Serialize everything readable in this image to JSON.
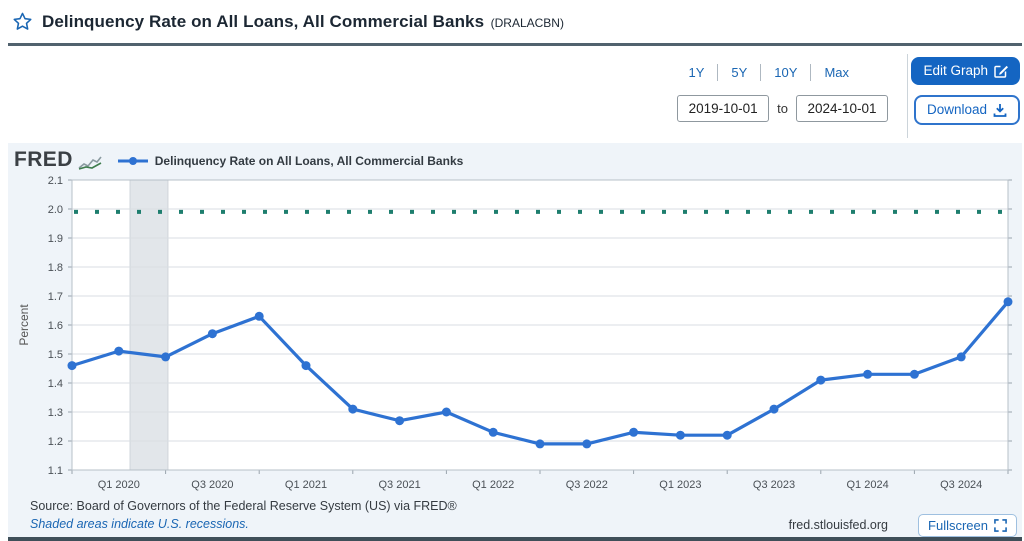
{
  "header": {
    "title": "Delinquency Rate on All Loans, All Commercial Banks",
    "series_id": "(DRALACBN)"
  },
  "controls": {
    "ranges": [
      "1Y",
      "5Y",
      "10Y",
      "Max"
    ],
    "date_from": "2019-10-01",
    "date_to": "2024-10-01",
    "to_label": "to",
    "edit_graph_label": "Edit Graph",
    "download_label": "Download"
  },
  "chart": {
    "brand": "FRED",
    "legend_label": "Delinquency Rate on All Loans, All Commercial Banks",
    "icons": [
      "fred-sparkline-icon",
      "legend-line-marker"
    ]
  },
  "chart_data": {
    "type": "line",
    "title": "Delinquency Rate on All Loans, All Commercial Banks",
    "ylabel": "Percent",
    "ylim": [
      1.1,
      2.1
    ],
    "y_ticks": [
      1.1,
      1.2,
      1.3,
      1.4,
      1.5,
      1.6,
      1.7,
      1.8,
      1.9,
      2.0,
      2.1
    ],
    "grid": true,
    "legend_position": "top-left",
    "x": [
      "2019-10-01",
      "2020-01-01",
      "2020-04-01",
      "2020-07-01",
      "2020-10-01",
      "2021-01-01",
      "2021-04-01",
      "2021-07-01",
      "2021-10-01",
      "2022-01-01",
      "2022-04-01",
      "2022-07-01",
      "2022-10-01",
      "2023-01-01",
      "2023-04-01",
      "2023-07-01",
      "2023-10-01",
      "2024-01-01",
      "2024-04-01",
      "2024-07-01",
      "2024-10-01"
    ],
    "x_tick_labels": [
      "Q1 2020",
      "Q3 2020",
      "Q1 2021",
      "Q3 2021",
      "Q1 2022",
      "Q3 2022",
      "Q1 2023",
      "Q3 2023",
      "Q1 2024",
      "Q3 2024"
    ],
    "x_tick_indices": [
      1,
      3,
      5,
      7,
      9,
      11,
      13,
      15,
      17,
      19
    ],
    "series": [
      {
        "name": "Delinquency Rate on All Loans, All Commercial Banks",
        "color": "#2e72d2",
        "marker": "circle",
        "values": [
          1.46,
          1.51,
          1.49,
          1.57,
          1.63,
          1.46,
          1.31,
          1.27,
          1.3,
          1.23,
          1.19,
          1.19,
          1.23,
          1.22,
          1.22,
          1.31,
          1.41,
          1.43,
          1.43,
          1.49,
          1.68
        ]
      }
    ],
    "reference_line": {
      "value": 1.99,
      "color": "#1e7e6e",
      "style": "dotted"
    },
    "recession_band": {
      "start_index": 1.24,
      "end_index": 2.05,
      "color": "#e2e6ea"
    },
    "colors": {
      "gridline": "#d9dee3",
      "plot_border": "#b7c0c8",
      "tick_text": "#4a5056"
    }
  },
  "footer": {
    "source": "Source: Board of Governors of the Federal Reserve System (US) via FRED®",
    "recession_note": "Shaded areas indicate U.S. recessions.",
    "site": "fred.stlouisfed.org",
    "fullscreen_label": "Fullscreen"
  },
  "colors": {
    "accent_blue": "#1a66b3",
    "button_blue": "#1465c2",
    "header_rule": "#51626e"
  }
}
